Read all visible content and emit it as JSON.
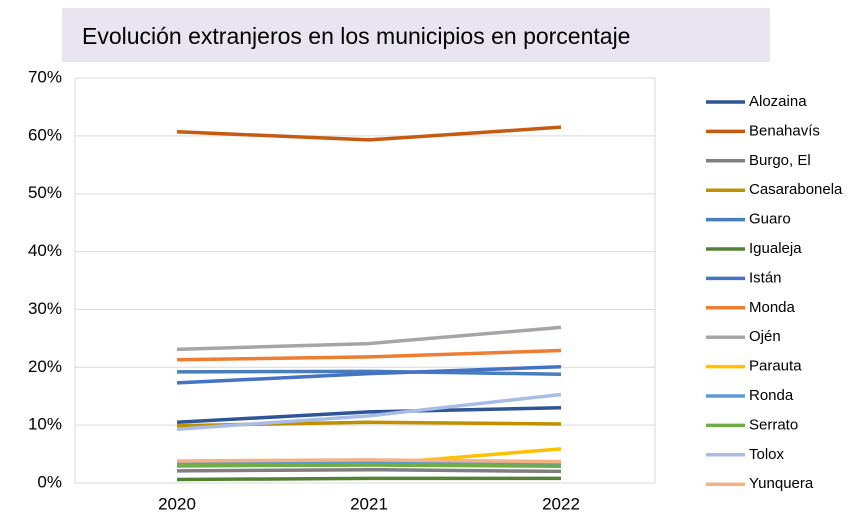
{
  "chart_data": {
    "type": "line",
    "title": "Evolución extranjeros en los municipios en porcentaje",
    "categories": [
      "2020",
      "2021",
      "2022"
    ],
    "ylim": [
      0,
      70
    ],
    "yticks": [
      {
        "value": 0,
        "label": "0%"
      },
      {
        "value": 10,
        "label": "10%"
      },
      {
        "value": 20,
        "label": "20%"
      },
      {
        "value": 30,
        "label": "30%"
      },
      {
        "value": 40,
        "label": "40%"
      },
      {
        "value": 50,
        "label": "50%"
      },
      {
        "value": 60,
        "label": "60%"
      },
      {
        "value": 70,
        "label": "70%"
      }
    ],
    "grid": true,
    "legend": "right",
    "series": [
      {
        "name": "Alozaina",
        "color": "#2f5597",
        "values": [
          10.5,
          12.3,
          13.0
        ]
      },
      {
        "name": "Benahavís",
        "color": "#c55a11",
        "values": [
          60.7,
          59.3,
          61.5
        ]
      },
      {
        "name": "Burgo, El",
        "color": "#7f7f7f",
        "values": [
          2.1,
          2.3,
          2.0
        ]
      },
      {
        "name": "Casarabonela",
        "color": "#bf9000",
        "values": [
          9.9,
          10.5,
          10.2
        ]
      },
      {
        "name": "Guaro",
        "color": "#4a7ebb",
        "values": [
          19.2,
          19.3,
          18.8
        ]
      },
      {
        "name": "Igualeja",
        "color": "#548235",
        "values": [
          0.6,
          0.8,
          0.8
        ]
      },
      {
        "name": "Istán",
        "color": "#4472c4",
        "values": [
          17.3,
          18.9,
          20.1
        ]
      },
      {
        "name": "Monda",
        "color": "#ed7d31",
        "values": [
          21.3,
          21.8,
          22.9
        ]
      },
      {
        "name": "Ojén",
        "color": "#a5a5a5",
        "values": [
          23.1,
          24.1,
          26.9
        ]
      },
      {
        "name": "Parauta",
        "color": "#ffc000",
        "values": [
          2.9,
          3.2,
          5.9
        ]
      },
      {
        "name": "Ronda",
        "color": "#5b9bd5",
        "values": [
          3.5,
          3.6,
          3.2
        ]
      },
      {
        "name": "Serrato",
        "color": "#70ad47",
        "values": [
          3.0,
          3.1,
          2.9
        ]
      },
      {
        "name": "Tolox",
        "color": "#a9bce6",
        "values": [
          9.3,
          11.6,
          15.3
        ]
      },
      {
        "name": "Yunquera",
        "color": "#f4b183",
        "values": [
          3.8,
          4.0,
          3.7
        ]
      }
    ]
  }
}
